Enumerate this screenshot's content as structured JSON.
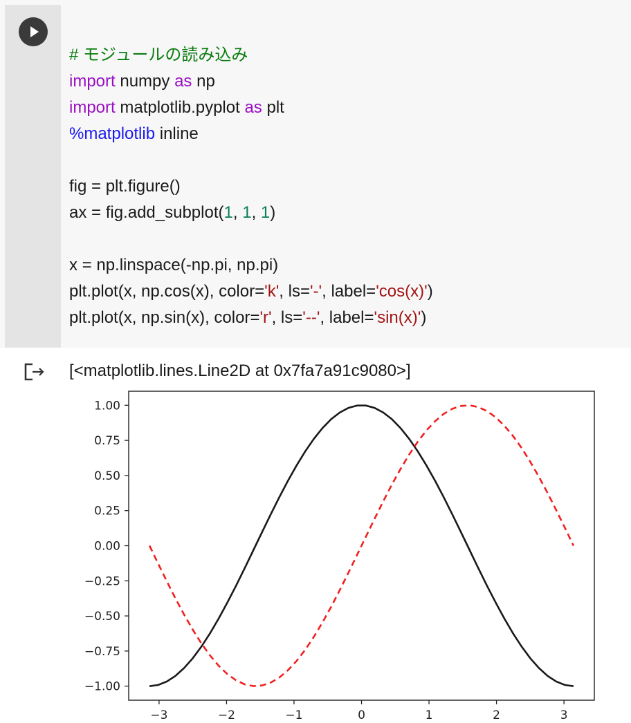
{
  "cell": {
    "code_lines": [
      [
        {
          "t": "# モジュールの読み込み",
          "c": "comment"
        }
      ],
      [
        {
          "t": "import",
          "c": "kw"
        },
        {
          "t": " numpy ",
          "c": ""
        },
        {
          "t": "as",
          "c": "kw"
        },
        {
          "t": " np",
          "c": ""
        }
      ],
      [
        {
          "t": "import",
          "c": "kw"
        },
        {
          "t": " matplotlib.pyplot ",
          "c": ""
        },
        {
          "t": "as",
          "c": "kw"
        },
        {
          "t": " plt",
          "c": ""
        }
      ],
      [
        {
          "t": "%matplotlib",
          "c": "magic"
        },
        {
          "t": " inline",
          "c": ""
        }
      ],
      [],
      [
        {
          "t": "fig = plt.figure()",
          "c": ""
        }
      ],
      [
        {
          "t": "ax = fig.add_subplot(",
          "c": ""
        },
        {
          "t": "1",
          "c": "num"
        },
        {
          "t": ", ",
          "c": ""
        },
        {
          "t": "1",
          "c": "num"
        },
        {
          "t": ", ",
          "c": ""
        },
        {
          "t": "1",
          "c": "num"
        },
        {
          "t": ")",
          "c": ""
        }
      ],
      [],
      [
        {
          "t": "x = np.linspace(-np.pi, np.pi)",
          "c": ""
        }
      ],
      [
        {
          "t": "plt.plot(x, np.cos(x), color=",
          "c": ""
        },
        {
          "t": "'k'",
          "c": "str"
        },
        {
          "t": ", ls=",
          "c": ""
        },
        {
          "t": "'-'",
          "c": "str"
        },
        {
          "t": ", label=",
          "c": ""
        },
        {
          "t": "'cos(x)'",
          "c": "str"
        },
        {
          "t": ")",
          "c": ""
        }
      ],
      [
        {
          "t": "plt.plot(x, np.sin(x), color=",
          "c": ""
        },
        {
          "t": "'r'",
          "c": "str"
        },
        {
          "t": ", ls=",
          "c": ""
        },
        {
          "t": "'--'",
          "c": "str"
        },
        {
          "t": ", label=",
          "c": ""
        },
        {
          "t": "'sin(x)'",
          "c": "str"
        },
        {
          "t": ")",
          "c": ""
        }
      ]
    ]
  },
  "output": {
    "text": "[<matplotlib.lines.Line2D at 0x7fa7a91c9080>]"
  },
  "icons": {
    "run": "play-icon",
    "output": "output-redirect-icon"
  },
  "colors": {
    "cos_line": "#1a1a1a",
    "sin_line": "#f02020"
  },
  "chart_data": {
    "type": "line",
    "xlim": [
      -3.45,
      3.45
    ],
    "ylim": [
      -1.1,
      1.1
    ],
    "x_ticks": [
      -3,
      -2,
      -1,
      0,
      1,
      2,
      3
    ],
    "x_tick_labels": [
      "−3",
      "−2",
      "−1",
      "0",
      "1",
      "2",
      "3"
    ],
    "y_ticks": [
      1.0,
      0.75,
      0.5,
      0.25,
      0.0,
      -0.25,
      -0.5,
      -0.75,
      -1.0
    ],
    "y_tick_labels": [
      "1.00",
      "0.75",
      "0.50",
      "0.25",
      "0.00",
      "−0.25",
      "−0.50",
      "−0.75",
      "−1.00"
    ],
    "grid": false,
    "x": [
      -3.1416,
      -3.0134,
      -2.8851,
      -2.7569,
      -2.6287,
      -2.5005,
      -2.3722,
      -2.244,
      -2.1158,
      -1.9875,
      -1.8593,
      -1.7311,
      -1.6029,
      -1.4746,
      -1.3464,
      -1.2182,
      -1.0899,
      -0.9617,
      -0.8335,
      -0.7053,
      -0.577,
      -0.4488,
      -0.3206,
      -0.1923,
      -0.0641,
      0.0641,
      0.1923,
      0.3206,
      0.4488,
      0.577,
      0.7053,
      0.8335,
      0.9617,
      1.0899,
      1.2182,
      1.3464,
      1.4746,
      1.6029,
      1.7311,
      1.8593,
      1.9875,
      2.1158,
      2.244,
      2.3722,
      2.5005,
      2.6287,
      2.7569,
      2.8851,
      3.0134,
      3.1416
    ],
    "series": [
      {
        "style": "solid",
        "values": [
          -1.0,
          -0.9918,
          -0.9673,
          -0.9269,
          -0.8713,
          -0.8014,
          -0.7183,
          -0.6235,
          -0.5184,
          -0.4048,
          -0.2845,
          -0.1596,
          -0.032,
          0.0961,
          0.2225,
          0.3453,
          0.4625,
          0.5721,
          0.6723,
          0.7614,
          0.8381,
          0.901,
          0.949,
          0.9816,
          0.9979,
          0.9979,
          0.9816,
          0.949,
          0.901,
          0.8381,
          0.7614,
          0.6723,
          0.5721,
          0.4625,
          0.3453,
          0.2225,
          0.0961,
          -0.032,
          -0.1596,
          -0.2845,
          -0.4048,
          -0.5184,
          -0.6235,
          -0.7183,
          -0.8014,
          -0.8713,
          -0.9269,
          -0.9673,
          -0.9918,
          -1.0
        ]
      },
      {
        "style": "dashed",
        "values": [
          0.0,
          -0.1279,
          -0.2537,
          -0.3753,
          -0.4907,
          -0.5981,
          -0.6957,
          -0.7818,
          -0.855,
          -0.9144,
          -0.9587,
          -0.9872,
          -0.9995,
          -0.9954,
          -0.9749,
          -0.9385,
          -0.8866,
          -0.8203,
          -0.7406,
          -0.6482,
          -0.5455,
          -0.4339,
          -0.3151,
          -0.1912,
          -0.0641,
          0.0641,
          0.1912,
          0.3151,
          0.4339,
          0.5455,
          0.6482,
          0.7406,
          0.8203,
          0.8866,
          0.9385,
          0.9749,
          0.9954,
          0.9995,
          0.9872,
          0.9587,
          0.9144,
          0.855,
          0.7818,
          0.6957,
          0.5981,
          0.4907,
          0.3753,
          0.2537,
          0.1279,
          0.0
        ]
      }
    ]
  }
}
